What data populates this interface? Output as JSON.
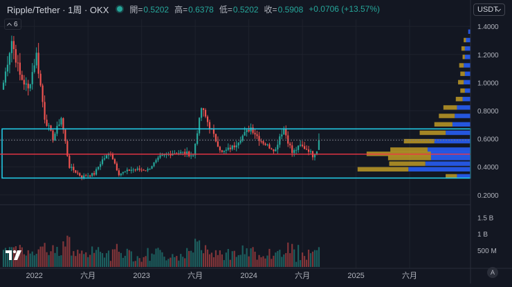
{
  "header": {
    "symbol_title": "Ripple/Tether · 1周 · OKX",
    "stats": [
      {
        "key": "開=",
        "value": "0.5202"
      },
      {
        "key": "高=",
        "value": "0.6378"
      },
      {
        "key": "低=",
        "value": "0.5202"
      },
      {
        "key": "收=",
        "value": "0.5908"
      },
      {
        "key": "",
        "value": "+0.0706 (+13.57%)"
      }
    ],
    "currency": "USDT"
  },
  "indicator_toggle": {
    "count": "6"
  },
  "price_axis": [
    "1.4000",
    "1.2000",
    "1.0000",
    "0.8000",
    "0.6000",
    "0.4000",
    "0.2000"
  ],
  "volume_axis": [
    "1.5 B",
    "1 B",
    "500 M"
  ],
  "time_axis": [
    "2022",
    "六月",
    "2023",
    "六月",
    "2024",
    "六月",
    "2025",
    "六月"
  ],
  "auto_label": "A",
  "colors": {
    "background": "#131722",
    "up": "#26a69a",
    "down": "#ef5350",
    "box": "#22d3ee",
    "line": "#f23645",
    "vp_gold": "#c9a227",
    "vp_blue": "#2962ff"
  },
  "chart_data": {
    "type": "candlestick",
    "symbol": "Ripple/Tether",
    "interval": "1周",
    "exchange": "OKX",
    "last_bar": {
      "open": 0.5202,
      "high": 0.6378,
      "low": 0.5202,
      "close": 0.5908,
      "change": 0.0706,
      "change_pct": 13.57
    },
    "price_range": [
      0.14,
      1.45
    ],
    "trend_segments": [
      {
        "week": 0,
        "close": 1.0
      },
      {
        "week": 4,
        "close": 1.3
      },
      {
        "week": 8,
        "close": 1.05
      },
      {
        "week": 12,
        "close": 0.95
      },
      {
        "week": 16,
        "close": 1.2
      },
      {
        "week": 20,
        "close": 0.75
      },
      {
        "week": 24,
        "close": 0.6
      },
      {
        "week": 28,
        "close": 0.75
      },
      {
        "week": 32,
        "close": 0.4
      },
      {
        "week": 38,
        "close": 0.33
      },
      {
        "week": 44,
        "close": 0.35
      },
      {
        "week": 48,
        "close": 0.45
      },
      {
        "week": 52,
        "close": 0.5
      },
      {
        "week": 56,
        "close": 0.35
      },
      {
        "week": 62,
        "close": 0.38
      },
      {
        "week": 70,
        "close": 0.38
      },
      {
        "week": 76,
        "close": 0.47
      },
      {
        "week": 82,
        "close": 0.5
      },
      {
        "week": 88,
        "close": 0.5
      },
      {
        "week": 92,
        "close": 0.48
      },
      {
        "week": 96,
        "close": 0.82
      },
      {
        "week": 99,
        "close": 0.72
      },
      {
        "week": 102,
        "close": 0.62
      },
      {
        "week": 106,
        "close": 0.5
      },
      {
        "week": 112,
        "close": 0.55
      },
      {
        "week": 116,
        "close": 0.62
      },
      {
        "week": 120,
        "close": 0.68
      },
      {
        "week": 124,
        "close": 0.6
      },
      {
        "week": 128,
        "close": 0.55
      },
      {
        "week": 132,
        "close": 0.52
      },
      {
        "week": 134,
        "close": 0.62
      },
      {
        "week": 136,
        "close": 0.67
      },
      {
        "week": 140,
        "close": 0.5
      },
      {
        "week": 144,
        "close": 0.55
      },
      {
        "week": 148,
        "close": 0.52
      },
      {
        "week": 150,
        "close": 0.48
      },
      {
        "week": 152,
        "close": 0.5202
      },
      {
        "week": 153,
        "close": 0.5908
      }
    ],
    "volume_range_B": [
      0,
      1.8
    ],
    "volume_profile": [
      {
        "price": 1.36,
        "gold": 0.0,
        "blue": 0.02
      },
      {
        "price": 1.3,
        "gold": 0.02,
        "blue": 0.04
      },
      {
        "price": 1.24,
        "gold": 0.03,
        "blue": 0.05
      },
      {
        "price": 1.18,
        "gold": 0.02,
        "blue": 0.05
      },
      {
        "price": 1.12,
        "gold": 0.04,
        "blue": 0.06
      },
      {
        "price": 1.06,
        "gold": 0.04,
        "blue": 0.05
      },
      {
        "price": 1.0,
        "gold": 0.05,
        "blue": 0.06
      },
      {
        "price": 0.94,
        "gold": 0.04,
        "blue": 0.05
      },
      {
        "price": 0.88,
        "gold": 0.06,
        "blue": 0.07
      },
      {
        "price": 0.82,
        "gold": 0.12,
        "blue": 0.12
      },
      {
        "price": 0.76,
        "gold": 0.14,
        "blue": 0.14
      },
      {
        "price": 0.7,
        "gold": 0.16,
        "blue": 0.16
      },
      {
        "price": 0.64,
        "gold": 0.23,
        "blue": 0.22
      },
      {
        "price": 0.58,
        "gold": 0.27,
        "blue": 0.32
      },
      {
        "price": 0.52,
        "gold": 0.33,
        "blue": 0.38
      },
      {
        "price": 0.49,
        "gold": 0.57,
        "blue": 0.35
      },
      {
        "price": 0.46,
        "gold": 0.38,
        "blue": 0.35
      },
      {
        "price": 0.42,
        "gold": 0.32,
        "blue": 0.4
      },
      {
        "price": 0.38,
        "gold": 0.45,
        "blue": 0.55
      },
      {
        "price": 0.33,
        "gold": 0.1,
        "blue": 0.12
      }
    ],
    "range_box": {
      "low": 0.32,
      "high": 0.67,
      "start_week": 0,
      "end": "right-edge"
    },
    "horizontal_line": {
      "price": 0.49
    },
    "dotted_line": {
      "price": 0.59
    }
  }
}
